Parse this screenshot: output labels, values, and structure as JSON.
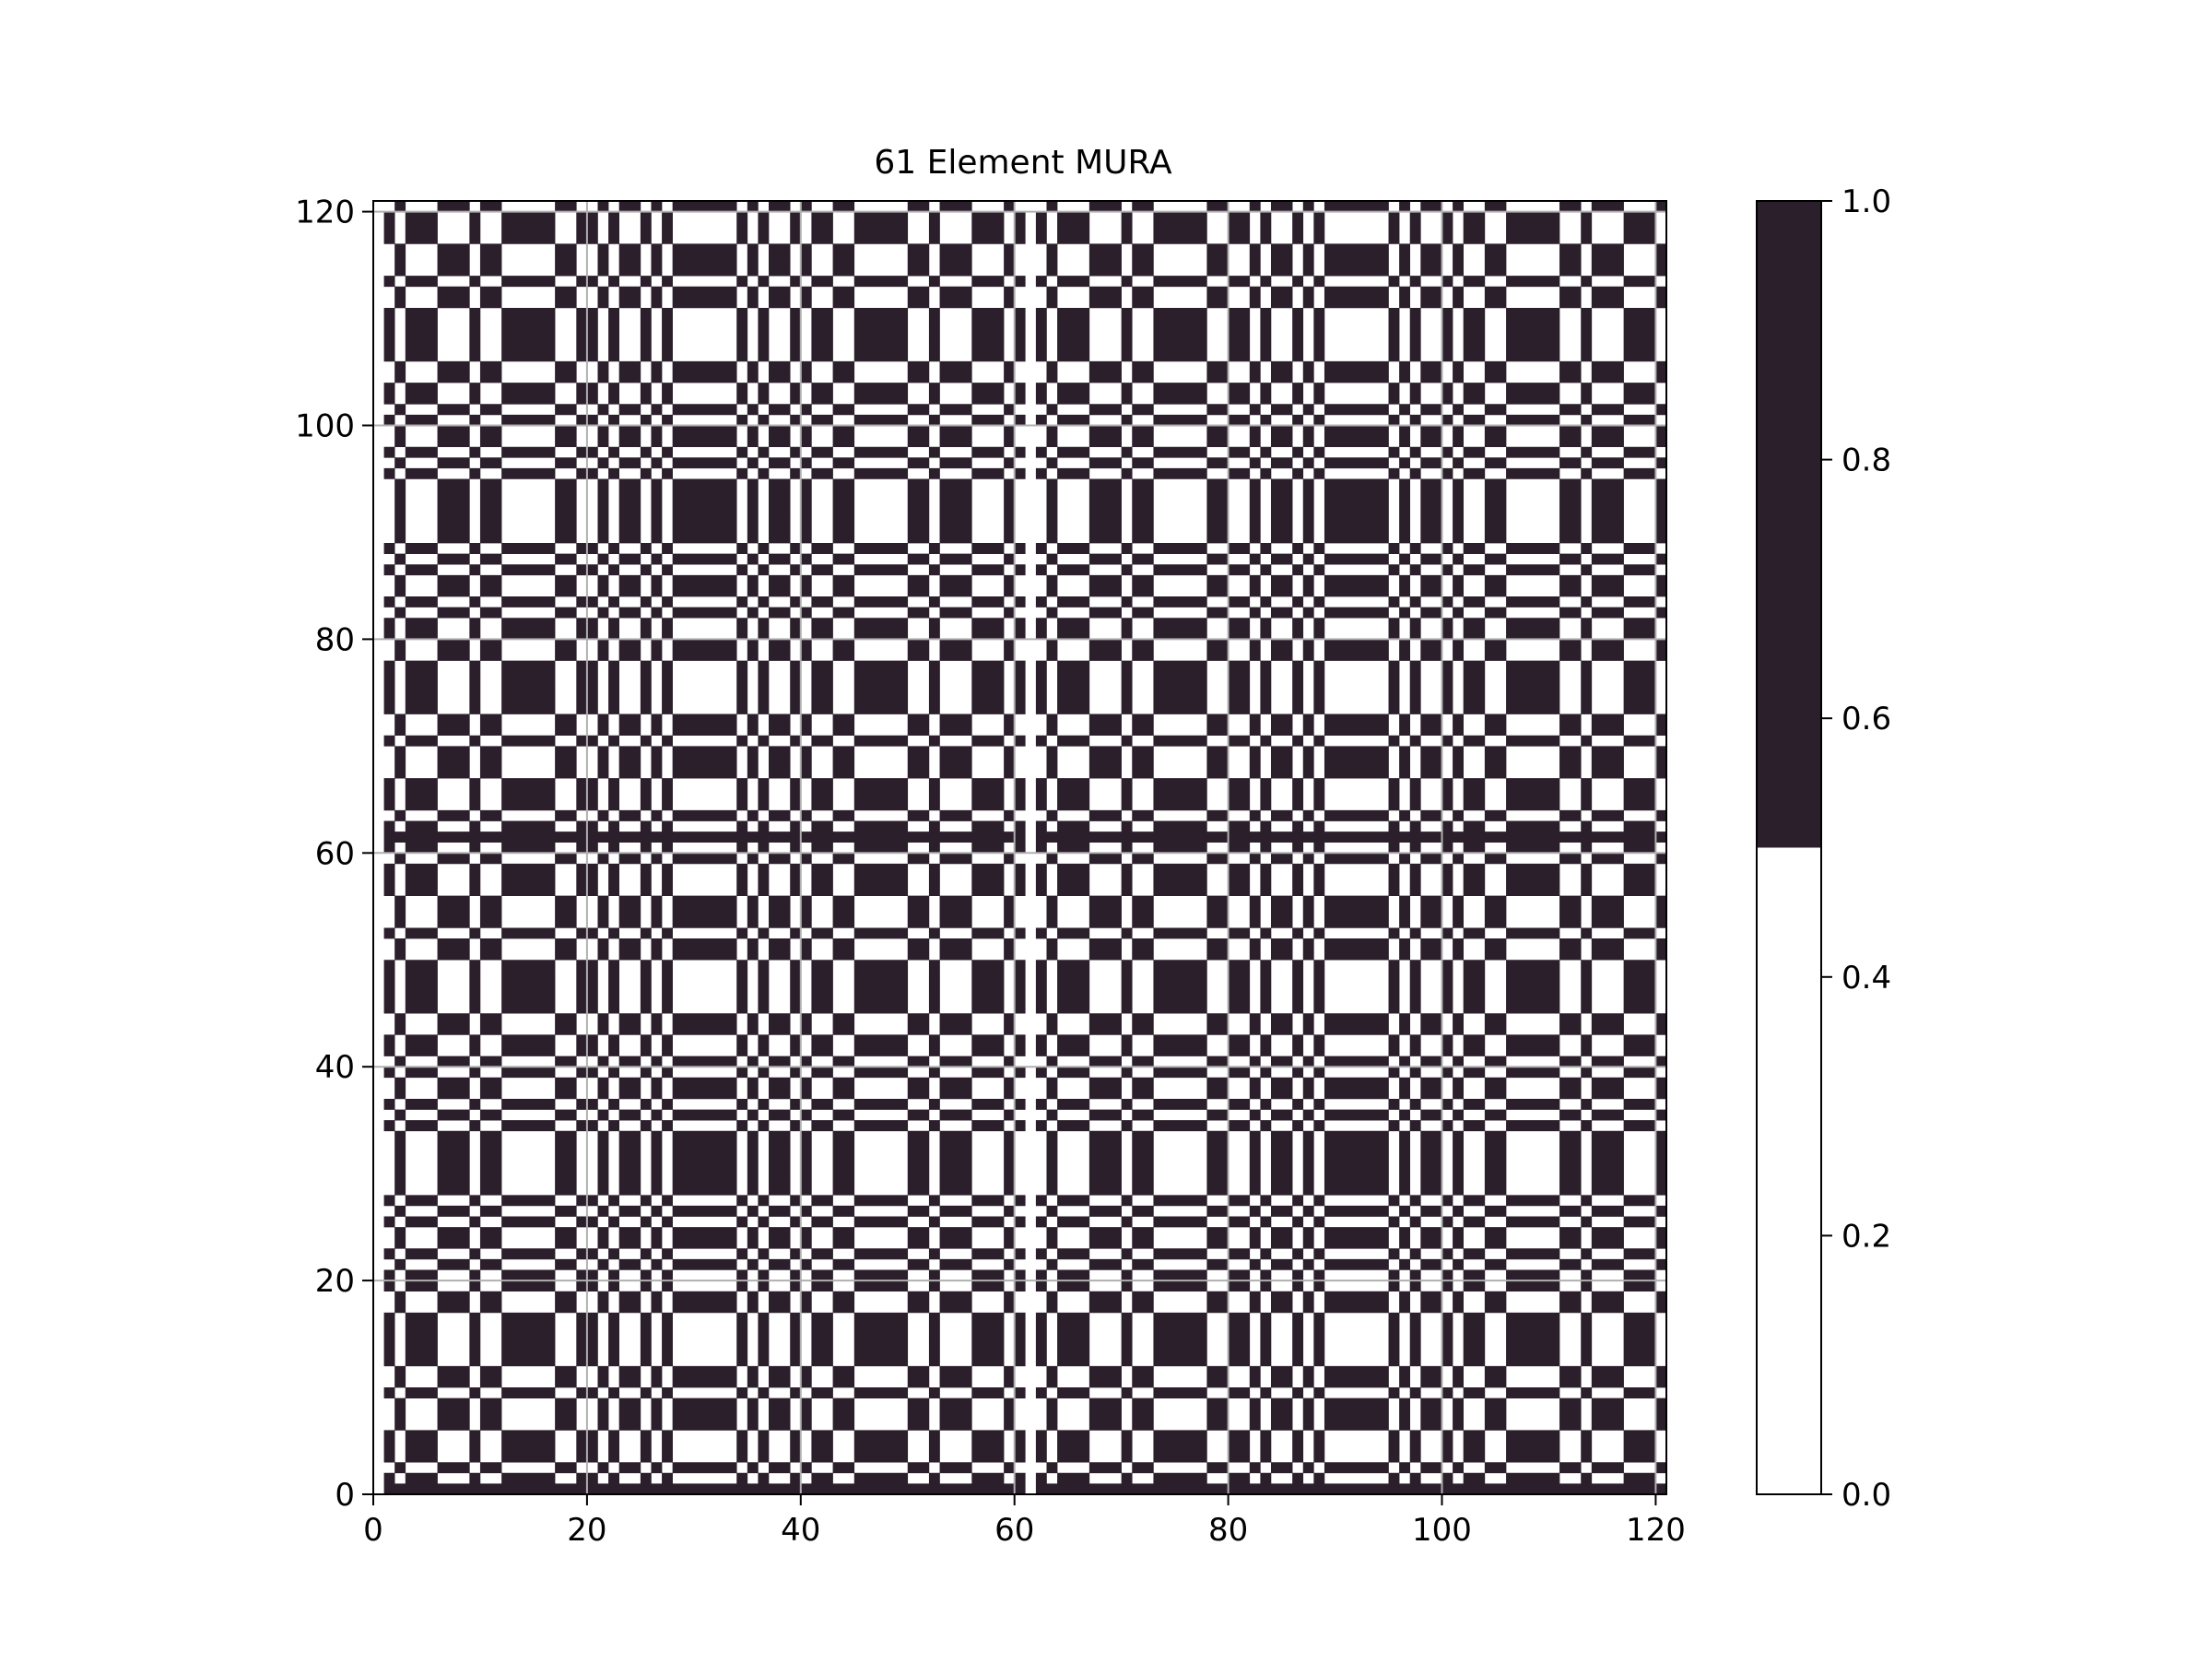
{
  "chart_data": {
    "type": "heatmap",
    "title": "61 Element MURA",
    "xlabel": "",
    "ylabel": "",
    "rank": 61,
    "mosaic": "2x2 tiling of the 61x61 MURA, 121x121 cells, top row and right column cropped",
    "xlim": [
      0,
      121
    ],
    "ylim": [
      0,
      121
    ],
    "x_ticks": [
      0,
      20,
      40,
      60,
      80,
      100,
      120
    ],
    "y_ticks": [
      0,
      20,
      40,
      60,
      80,
      100,
      120
    ],
    "x_tick_labels": [
      "0",
      "20",
      "40",
      "60",
      "80",
      "100",
      "120"
    ],
    "y_tick_labels": [
      "0",
      "20",
      "40",
      "60",
      "80",
      "100",
      "120"
    ],
    "grid": "on",
    "colorbar": {
      "placement": "right",
      "range": [
        0,
        1
      ],
      "ticks": [
        0.0,
        0.2,
        0.4,
        0.6,
        0.8,
        1.0
      ],
      "tick_labels": [
        "0.0",
        "0.2",
        "0.4",
        "0.6",
        "0.8",
        "1.0"
      ],
      "boundary": 0.5,
      "colors": [
        "#ffffff",
        "#2b1f2b"
      ]
    }
  },
  "colors": {
    "open": "#ffffff",
    "closed": "#2b1f2b",
    "grid": "#b0b0b0",
    "axis": "#000000"
  }
}
